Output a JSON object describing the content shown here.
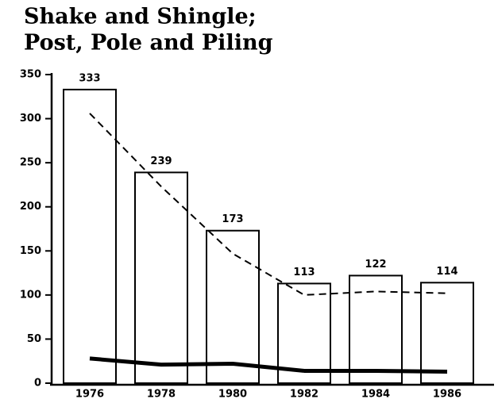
{
  "chart_data": {
    "type": "bar",
    "title": [
      "Shake and Shingle;",
      "Post, Pole and Piling"
    ],
    "categories": [
      "1976",
      "1978",
      "1980",
      "1982",
      "1984",
      "1986"
    ],
    "values": [
      333,
      239,
      173,
      113,
      122,
      114
    ],
    "color": "#ffffff",
    "lines": [
      {
        "style": "dashed",
        "color": "#000000",
        "values": [
          306,
          223,
          147,
          100,
          104,
          102
        ]
      },
      {
        "style": "solid",
        "color": "#000000",
        "values": [
          28,
          21,
          22,
          14,
          14,
          13
        ]
      }
    ],
    "ylim": [
      0,
      350
    ],
    "yticks": [
      0,
      50,
      100,
      150,
      200,
      250,
      300,
      350
    ],
    "grid": false
  }
}
